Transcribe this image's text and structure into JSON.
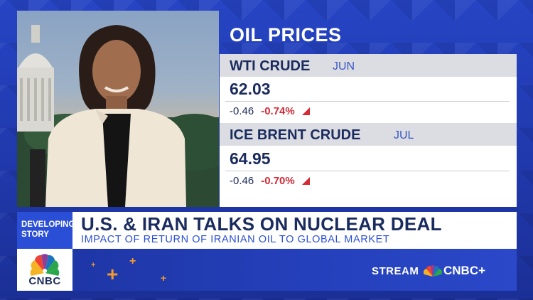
{
  "oil": {
    "title": "OIL PRICES",
    "wti": {
      "name": "WTI CRUDE",
      "month": "JUN",
      "price": "62.03",
      "change": "-0.46",
      "percent": "-0.74%"
    },
    "brent": {
      "name": "ICE BRENT CRUDE",
      "month": "JUL",
      "price": "64.95",
      "change": "-0.46",
      "percent": "-0.70%"
    }
  },
  "lower_third": {
    "tag_line1": "DEVELOPING",
    "tag_line2": "STORY",
    "headline": "U.S. & IRAN TALKS ON NUCLEAR DEAL",
    "subhead": "IMPACT OF RETURN OF IRANIAN OIL TO GLOBAL MARKET"
  },
  "network": {
    "logo_text": "CNBC"
  },
  "promo": {
    "stream_label": "STREAM",
    "service_name": "CNBC+"
  },
  "colors": {
    "navy": "#1a2b5e",
    "royal_blue": "#2a4fd6",
    "down_red": "#d42a36",
    "promo_orange": "#f29a2e"
  },
  "icons": {
    "down_indicator": "red-triangle",
    "logo": "nbc-peacock"
  }
}
